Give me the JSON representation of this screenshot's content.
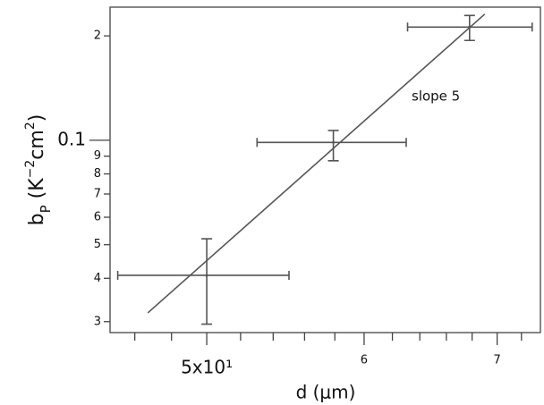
{
  "chart_data": {
    "type": "scatter",
    "xlog": true,
    "ylog": true,
    "color": "#555555",
    "xlabel": "d (μm)",
    "ylabel_parts": [
      "b",
      "P",
      " (K",
      "−2",
      "cm",
      "2",
      ")"
    ],
    "annotation": "slope 5",
    "xlim": [
      44.7,
      73.6
    ],
    "ylim": [
      0.0279,
      0.242
    ],
    "xticks": [
      {
        "value": 50,
        "label": "5x10¹"
      },
      {
        "value": 60,
        "label": "6"
      },
      {
        "value": 70,
        "label": "7"
      }
    ],
    "xminorticks": [
      46,
      48,
      52,
      54,
      56,
      58,
      62,
      64,
      66,
      68,
      72
    ],
    "yticks": [
      {
        "value": 0.03,
        "label": "3"
      },
      {
        "value": 0.04,
        "label": "4"
      },
      {
        "value": 0.05,
        "label": "5"
      },
      {
        "value": 0.06,
        "label": "6"
      },
      {
        "value": 0.07,
        "label": "7"
      },
      {
        "value": 0.08,
        "label": "8"
      },
      {
        "value": 0.09,
        "label": "9"
      },
      0.1,
      {
        "value": 0.2,
        "label": "2"
      }
    ],
    "x": [
      50,
      57.9,
      67.8
    ],
    "y": [
      0.0408,
      0.0986,
      0.212
    ],
    "xlow": [
      45.1,
      53.0,
      63.1
    ],
    "xhigh": [
      55.0,
      63.0,
      72.9
    ],
    "ylow": [
      0.0295,
      0.0873,
      0.194
    ],
    "yhigh": [
      0.052,
      0.1067,
      0.229
    ],
    "fit": {
      "x": [
        46.7,
        69.0
      ],
      "y": [
        0.0318,
        0.231
      ]
    }
  }
}
